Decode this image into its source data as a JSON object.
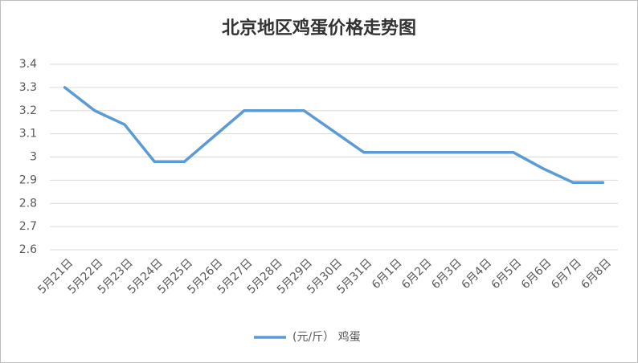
{
  "chart_data": {
    "type": "line",
    "title": "北京地区鸡蛋价格走势图",
    "categories": [
      "5月21日",
      "5月22日",
      "5月23日",
      "5月24日",
      "5月25日",
      "5月26日",
      "5月27日",
      "5月28日",
      "5月29日",
      "5月30日",
      "5月31日",
      "6月1日",
      "6月2日",
      "6月3日",
      "6月4日",
      "6月5日",
      "6月6日",
      "6月7日",
      "6月8日"
    ],
    "series": [
      {
        "name": "(元/斤） 鸡蛋",
        "color": "#5b9bd5",
        "values": [
          3.3,
          3.2,
          3.14,
          2.98,
          2.98,
          3.09,
          3.2,
          3.2,
          3.2,
          3.11,
          3.02,
          3.02,
          3.02,
          3.02,
          3.02,
          3.02,
          2.95,
          2.89,
          2.89
        ]
      }
    ],
    "ylim": [
      2.6,
      3.4
    ],
    "yticks": [
      2.6,
      2.7,
      2.8,
      2.9,
      3,
      3.1,
      3.2,
      3.3,
      3.4
    ],
    "grid": true,
    "legend": "bottom"
  }
}
